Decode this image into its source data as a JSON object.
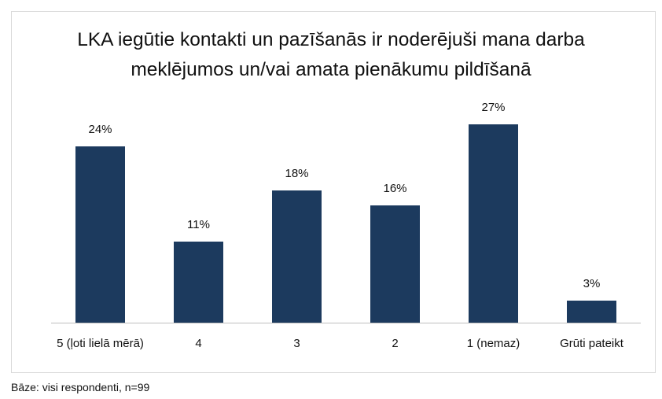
{
  "chart_data": {
    "type": "bar",
    "title": "LKA iegūtie kontakti un pazīšanās ir noderējuši mana darba meklējumos un/vai amata pienākumu pildīšanā",
    "categories": [
      "5 (ļoti lielā mērā)",
      "4",
      "3",
      "2",
      "1 (nemaz)",
      "Grūti pateikt"
    ],
    "values": [
      24,
      11,
      18,
      16,
      27,
      3
    ],
    "value_labels": [
      "24%",
      "11%",
      "18%",
      "16%",
      "27%",
      "3%"
    ],
    "color": "#1c3a5e",
    "ylim": [
      0,
      30
    ],
    "grid": false,
    "footnote": "Bāze: visi respondenti, n=99"
  }
}
